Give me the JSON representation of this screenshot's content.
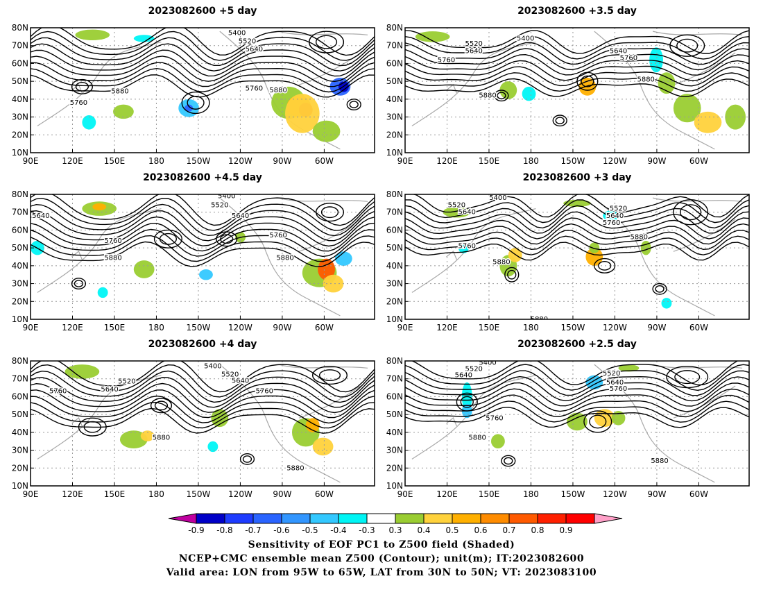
{
  "panels": [
    {
      "title": "2023082600 +5 day",
      "contour_labels": [
        "5400",
        "5520",
        "5640",
        "5760",
        "5880",
        "5760",
        "5880"
      ],
      "label_positions": [
        [
          0.6,
          77
        ],
        [
          0.63,
          72.5
        ],
        [
          0.65,
          68
        ],
        [
          0.65,
          46
        ],
        [
          0.72,
          45
        ],
        [
          0.14,
          38
        ],
        [
          0.26,
          44.5
        ]
      ]
    },
    {
      "title": "2023082600 +3.5 day",
      "contour_labels": [
        "5400",
        "5520",
        "5640",
        "5640",
        "5760",
        "5760",
        "5880",
        "5880"
      ],
      "label_positions": [
        [
          0.35,
          74
        ],
        [
          0.2,
          71
        ],
        [
          0.2,
          67
        ],
        [
          0.62,
          67
        ],
        [
          0.65,
          63
        ],
        [
          0.12,
          62
        ],
        [
          0.24,
          42
        ],
        [
          0.7,
          51
        ]
      ]
    },
    {
      "title": "2023082600 +4.5 day",
      "contour_labels": [
        "5400",
        "5520",
        "5640",
        "5640",
        "5760",
        "5880",
        "5760",
        "5880"
      ],
      "label_positions": [
        [
          0.57,
          79
        ],
        [
          0.55,
          74
        ],
        [
          0.61,
          68
        ],
        [
          0.03,
          68
        ],
        [
          0.72,
          57
        ],
        [
          0.74,
          44.5
        ],
        [
          0.24,
          54
        ],
        [
          0.24,
          44.5
        ]
      ]
    },
    {
      "title": "2023082600 +3 day",
      "contour_labels": [
        "5400",
        "5520",
        "5640",
        "5520",
        "5640",
        "5760",
        "5880",
        "5760",
        "5880",
        "5880"
      ],
      "label_positions": [
        [
          0.27,
          78
        ],
        [
          0.15,
          74
        ],
        [
          0.18,
          70
        ],
        [
          0.62,
          72
        ],
        [
          0.61,
          68
        ],
        [
          0.6,
          64
        ],
        [
          0.68,
          56
        ],
        [
          0.18,
          51
        ],
        [
          0.28,
          42
        ],
        [
          0.39,
          10
        ]
      ]
    },
    {
      "title": "2023082600 +4 day",
      "contour_labels": [
        "5400",
        "5520",
        "5640",
        "5760",
        "5520",
        "5640",
        "5760",
        "5880",
        "5880"
      ],
      "label_positions": [
        [
          0.53,
          77
        ],
        [
          0.58,
          72.5
        ],
        [
          0.61,
          69
        ],
        [
          0.68,
          63
        ],
        [
          0.28,
          68.5
        ],
        [
          0.23,
          64
        ],
        [
          0.08,
          63
        ],
        [
          0.38,
          37
        ],
        [
          0.77,
          20
        ]
      ]
    },
    {
      "title": "2023082600 +2.5 day",
      "contour_labels": [
        "5400",
        "5520",
        "5640",
        "5520",
        "5640",
        "5760",
        "5760",
        "5880",
        "5880"
      ],
      "label_positions": [
        [
          0.24,
          79
        ],
        [
          0.2,
          75.5
        ],
        [
          0.17,
          72
        ],
        [
          0.6,
          73
        ],
        [
          0.61,
          68
        ],
        [
          0.62,
          64.5
        ],
        [
          0.26,
          48
        ],
        [
          0.21,
          37
        ],
        [
          0.74,
          24
        ]
      ]
    }
  ],
  "longitude_ticks": [
    "90E",
    "120E",
    "150E",
    "180",
    "150W",
    "120W",
    "90W",
    "60W"
  ],
  "latitude_ticks": [
    "10N",
    "20N",
    "30N",
    "40N",
    "50N",
    "60N",
    "70N",
    "80N"
  ],
  "colorbar": {
    "colors": [
      "#c000a0",
      "#0000c8",
      "#1e3cff",
      "#2a64ff",
      "#3296ff",
      "#33c8ff",
      "#00f5f5",
      "#ffffff",
      "#9acd32",
      "#ffd23c",
      "#ffb000",
      "#ff8c00",
      "#ff5a00",
      "#ff2000",
      "#ff0000",
      "#ffa0c8"
    ],
    "labels": [
      "-0.9",
      "-0.8",
      "-0.7",
      "-0.6",
      "-0.5",
      "-0.4",
      "-0.3",
      "0.3",
      "0.4",
      "0.5",
      "0.6",
      "0.7",
      "0.8",
      "0.9"
    ]
  },
  "footer": {
    "line1": "Sensitivity of EOF PC1 to Z500 field (Shaded)",
    "line2": "NCEP+CMC ensemble mean Z500 (Contour); unit(m); IT:2023082600",
    "line3": "Valid area: LON from 95W to 65W, LAT from 30N to 50N; VT: 2023083100"
  }
}
